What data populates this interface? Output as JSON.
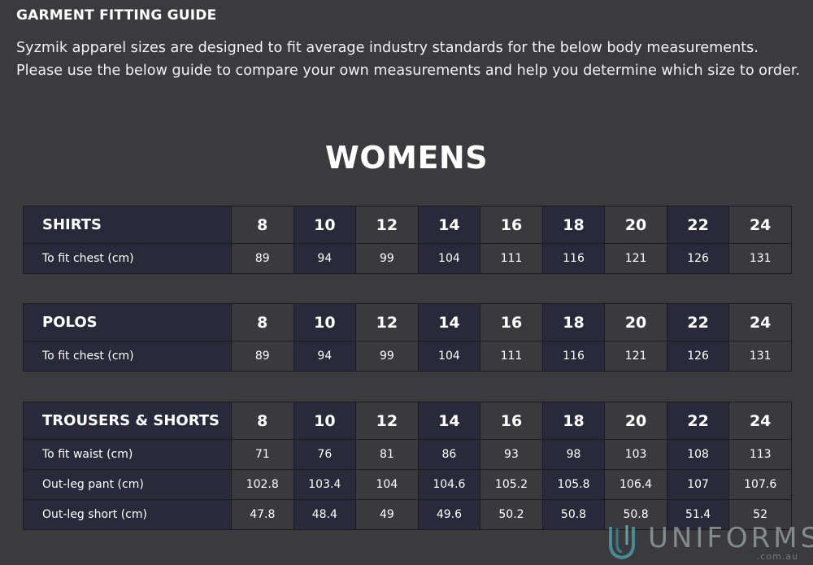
{
  "guide": {
    "title": "GARMENT FITTING GUIDE",
    "intro": "Syzmik apparel sizes are designed to fit average industry standards for the below body measurements. Please use the below guide to compare your own measurements and help you determine which size to order.",
    "section": "WOMENS"
  },
  "tables": [
    {
      "category": "SHIRTS",
      "sizes": [
        "8",
        "10",
        "12",
        "14",
        "16",
        "18",
        "20",
        "22",
        "24"
      ],
      "rows": [
        {
          "label": "To fit chest (cm)",
          "values": [
            "89",
            "94",
            "99",
            "104",
            "111",
            "116",
            "121",
            "126",
            "131"
          ]
        }
      ]
    },
    {
      "category": "POLOS",
      "sizes": [
        "8",
        "10",
        "12",
        "14",
        "16",
        "18",
        "20",
        "22",
        "24"
      ],
      "rows": [
        {
          "label": "To fit chest (cm)",
          "values": [
            "89",
            "94",
            "99",
            "104",
            "111",
            "116",
            "121",
            "126",
            "131"
          ]
        }
      ]
    },
    {
      "category": "TROUSERS & SHORTS",
      "sizes": [
        "8",
        "10",
        "12",
        "14",
        "16",
        "18",
        "20",
        "22",
        "24"
      ],
      "rows": [
        {
          "label": "To fit waist (cm)",
          "values": [
            "71",
            "76",
            "81",
            "86",
            "93",
            "98",
            "103",
            "108",
            "113"
          ]
        },
        {
          "label": "Out-leg pant (cm)",
          "values": [
            "102.8",
            "103.4",
            "104",
            "104.6",
            "105.2",
            "105.8",
            "106.4",
            "107",
            "107.6"
          ]
        },
        {
          "label": "Out-leg short (cm)",
          "values": [
            "47.8",
            "48.4",
            "49",
            "49.6",
            "50.2",
            "50.8",
            "50.8",
            "51.4",
            "52"
          ]
        }
      ]
    }
  ],
  "watermark": {
    "brand": "UNIFORMS",
    "domain": ".com.au"
  },
  "colors": {
    "background": "#3b3b3e",
    "dark_cell": "#2a2939",
    "light_cell": "#3a3a3d"
  }
}
